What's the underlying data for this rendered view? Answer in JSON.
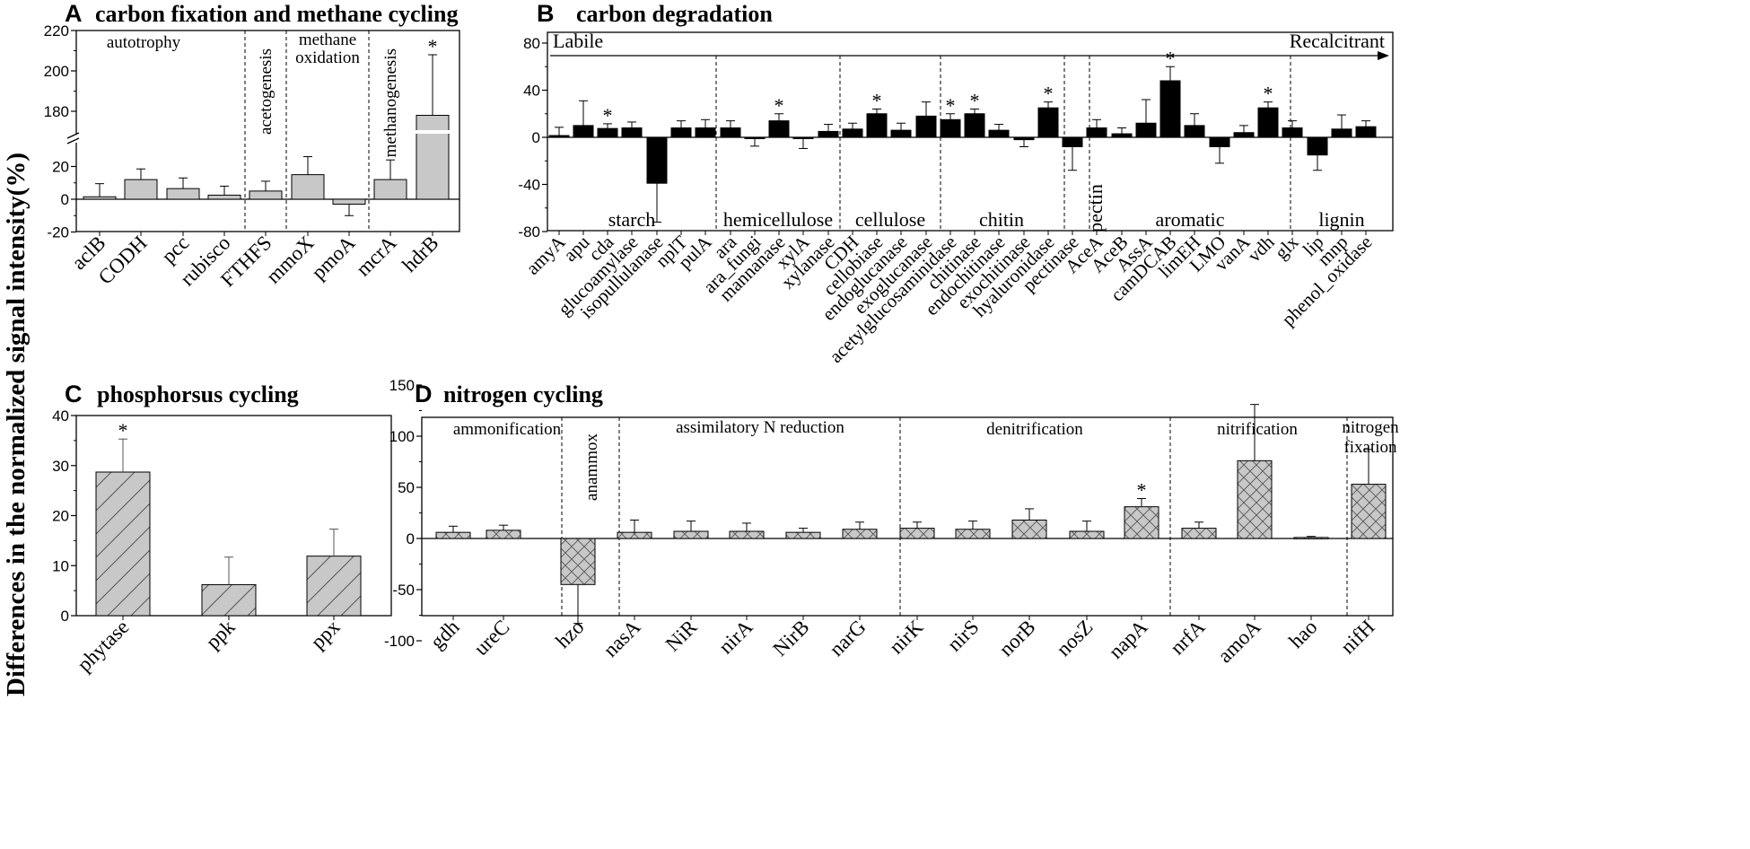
{
  "y_axis_label": "Differences in the normalized signal intensity(%)",
  "chart_data": [
    {
      "id": "A",
      "letter": "A",
      "title": "carbon fixation and methane cycling",
      "type": "bar",
      "fill": "#c8c8c8",
      "pattern": "none",
      "y_ticks": [
        "-20",
        "0",
        "20",
        "180",
        "200",
        "220"
      ],
      "y_ranges": [
        [
          -20,
          30
        ],
        [
          170,
          220
        ]
      ],
      "categories": [
        "aclB",
        "CODH",
        "pcc",
        "rubisco",
        "FTHFS",
        "mmoX",
        "pmoA",
        "mcrA",
        "hdrB"
      ],
      "values": [
        1.5,
        12,
        6.5,
        2.5,
        5,
        15,
        -3,
        12,
        178
      ],
      "errors": [
        8,
        6.5,
        6.5,
        5.5,
        6,
        11,
        7,
        12,
        30
      ],
      "significant": [
        false,
        false,
        false,
        false,
        false,
        false,
        false,
        false,
        true
      ],
      "groups": [
        {
          "label": "autotrophy"
        },
        {
          "label": "acetogenesis",
          "vertical": true
        },
        {
          "label": "methane oxidation"
        },
        {
          "label": "methanogenesis",
          "vertical": true
        }
      ]
    },
    {
      "id": "B",
      "letter": "B",
      "title": "carbon degradation",
      "type": "bar",
      "fill": "#000000",
      "pattern": "none",
      "y_ticks": [
        "-80",
        "-40",
        "0",
        "40",
        "80"
      ],
      "ylim": [
        -80,
        90
      ],
      "gradient_labels": {
        "start": "Labile",
        "end": "Recalcitrant"
      },
      "categories": [
        "amyA",
        "apu",
        "cda",
        "glucoamylase",
        "isopullulanase",
        "nplT",
        "pulA",
        "ara",
        "ara_fungi",
        "mannanase",
        "xylA",
        "xylanase",
        "CDH",
        "cellobiase",
        "endoglucanase",
        "exoglucanase",
        "acetylglucosaminidase",
        "chitinase",
        "endochitinase",
        "exochitinase",
        "hyaluronidase",
        "pectinase",
        "AceA",
        "AceB",
        "AssA",
        "camDCAB",
        "limEH",
        "LMO",
        "vanA",
        "vdh",
        "glx",
        "lip",
        "mnp",
        "phenol_oxidase"
      ],
      "values": [
        1.5,
        10,
        7.5,
        8,
        -39,
        8,
        8,
        8,
        -0.5,
        14,
        -0.5,
        5,
        7,
        20,
        6,
        18,
        15,
        20,
        6,
        -2,
        25,
        -8,
        8,
        3,
        12,
        48,
        10,
        -8,
        4,
        25,
        8,
        -15,
        7,
        9
      ],
      "errors": [
        7,
        21,
        4,
        5,
        33,
        6,
        7,
        6,
        7,
        6,
        9,
        6,
        5,
        4,
        6,
        12,
        5,
        4,
        5,
        6,
        5,
        20,
        7,
        5,
        20,
        12,
        10,
        14,
        6,
        5,
        6,
        13,
        12,
        5
      ],
      "significant": [
        false,
        false,
        true,
        false,
        false,
        false,
        false,
        false,
        false,
        true,
        false,
        false,
        false,
        true,
        false,
        false,
        true,
        true,
        false,
        false,
        true,
        false,
        false,
        false,
        false,
        true,
        false,
        false,
        false,
        true,
        false,
        false,
        false,
        false
      ],
      "groups": [
        {
          "label": "starch"
        },
        {
          "label": "hemicellulose"
        },
        {
          "label": "cellulose"
        },
        {
          "label": "chitin"
        },
        {
          "label": "pectin",
          "vertical": true
        },
        {
          "label": "aromatic"
        },
        {
          "label": "lignin"
        }
      ]
    },
    {
      "id": "C",
      "letter": "C",
      "title": "phosphorsus cycling",
      "type": "bar",
      "fill": "#c8c8c8",
      "pattern": "diagonal",
      "y_ticks": [
        "0",
        "10",
        "20",
        "30",
        "40"
      ],
      "ylim": [
        0,
        40
      ],
      "categories": [
        "phytase",
        "ppk",
        "ppx"
      ],
      "values": [
        28.7,
        6.2,
        11.9
      ],
      "errors": [
        6.6,
        5.5,
        5.4
      ],
      "significant": [
        true,
        false,
        false
      ],
      "groups": []
    },
    {
      "id": "D",
      "letter": "D",
      "title": "nitrogen cycling",
      "type": "bar",
      "fill": "#c8c8c8",
      "pattern": "crosshatch",
      "y_ticks": [
        "-100",
        "-50",
        "0",
        "50",
        "100",
        "150"
      ],
      "ylim": [
        -100,
        155
      ],
      "categories": [
        "gdh",
        "ureC",
        "hzo",
        "nasA",
        "NiR",
        "nirA",
        "NirB",
        "narG",
        "nirK",
        "nirS",
        "norB",
        "nosZ",
        "napA",
        "nrfA",
        "amoA",
        "hao",
        "nifH"
      ],
      "values": [
        6,
        8,
        -45,
        6,
        7,
        7,
        6,
        9,
        10,
        9,
        18,
        7,
        31,
        10,
        76,
        1,
        53
      ],
      "errors": [
        6,
        5,
        38,
        12,
        10,
        8,
        4,
        7,
        6,
        8,
        11,
        10,
        8,
        6,
        55,
        1,
        34
      ],
      "significant": [
        false,
        false,
        false,
        false,
        false,
        false,
        false,
        false,
        false,
        false,
        false,
        false,
        true,
        false,
        false,
        false,
        false
      ],
      "groups": [
        {
          "label": "ammonification"
        },
        {
          "label": "anammox",
          "vertical": true
        },
        {
          "label": "assimilatory N reduction"
        },
        {
          "label": "denitrification"
        },
        {
          "label": "nitrification"
        },
        {
          "label": "nitrogen fixation"
        }
      ]
    }
  ]
}
